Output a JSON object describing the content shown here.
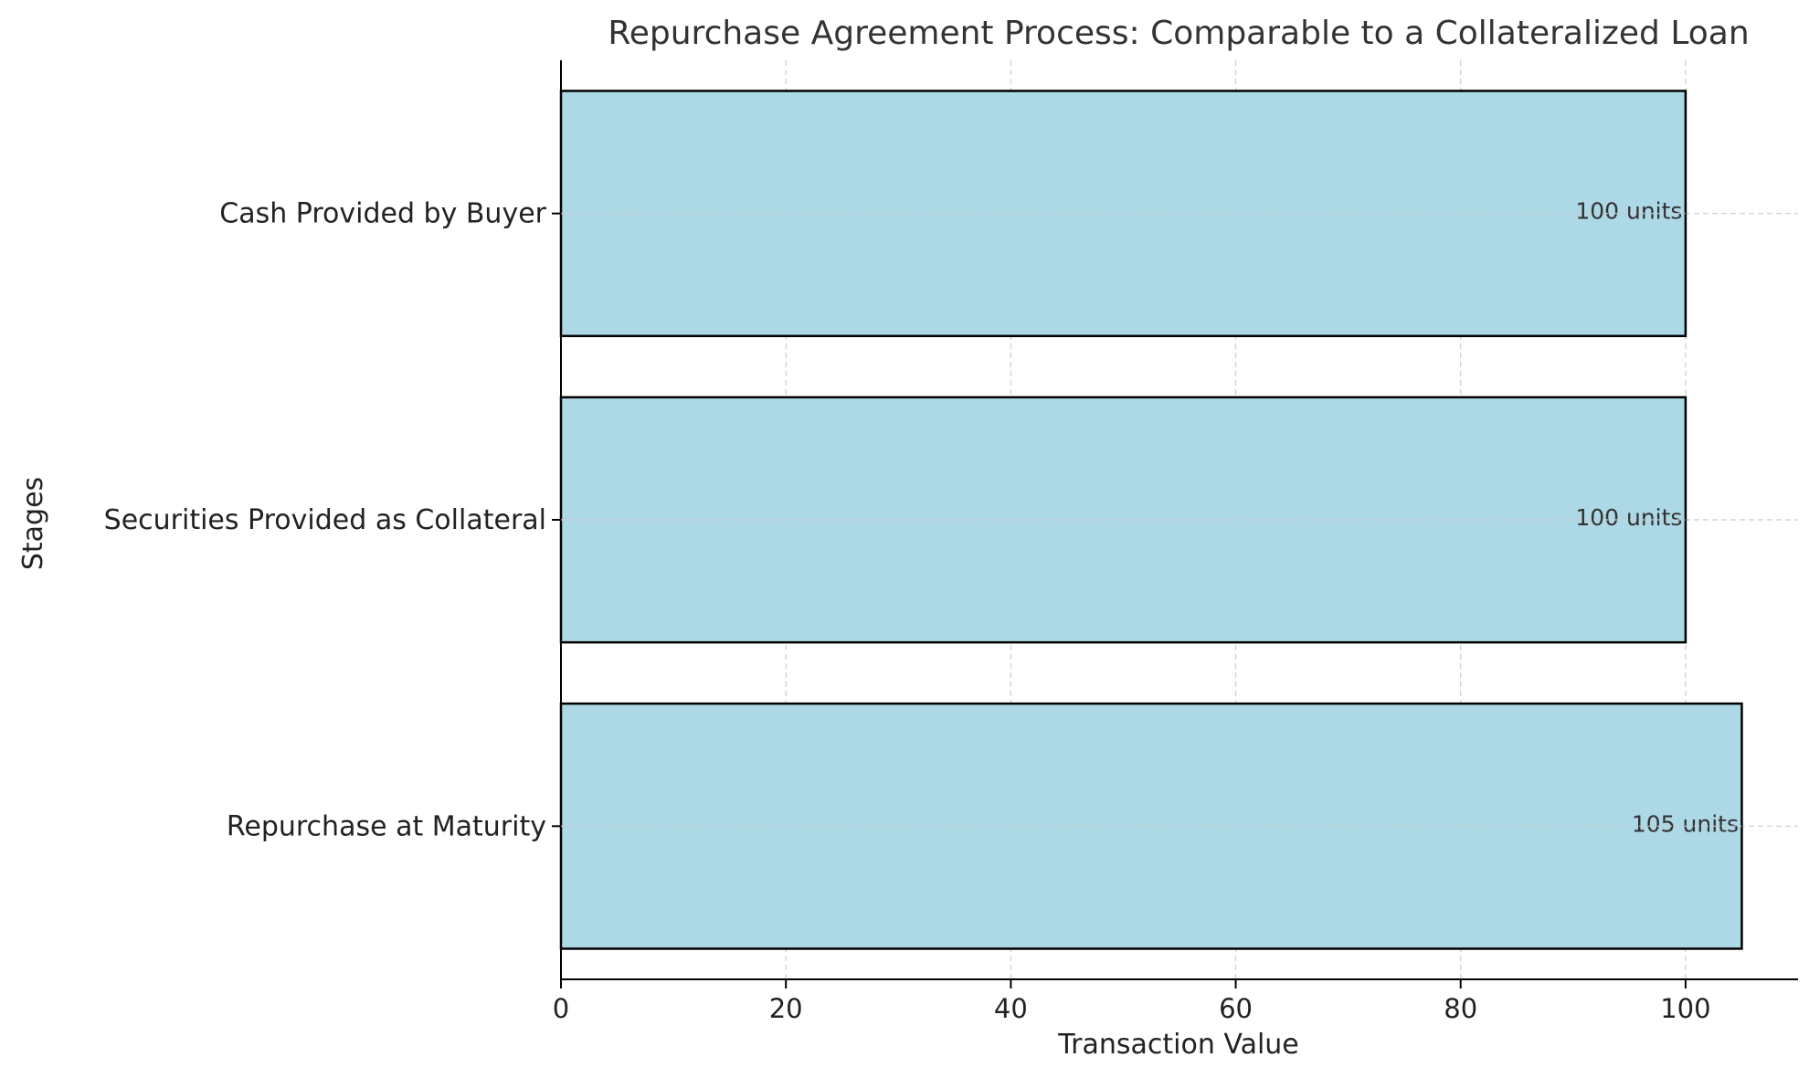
{
  "chart_data": {
    "type": "bar",
    "orientation": "horizontal",
    "title": "Repurchase Agreement Process: Comparable to a Collateralized Loan",
    "xlabel": "Transaction Value",
    "ylabel": "Stages",
    "categories": [
      "Repurchase at Maturity",
      "Securities Provided as Collateral",
      "Cash Provided by Buyer"
    ],
    "values": [
      105,
      100,
      100
    ],
    "data_labels": [
      "105 units",
      "100 units",
      "100 units"
    ],
    "xlim": [
      0,
      110
    ],
    "xticks": [
      0,
      20,
      40,
      60,
      80,
      100
    ],
    "grid": true,
    "bar_color": "#add8e6",
    "edge_color": "#000000",
    "grid_color": "#cccccc"
  }
}
